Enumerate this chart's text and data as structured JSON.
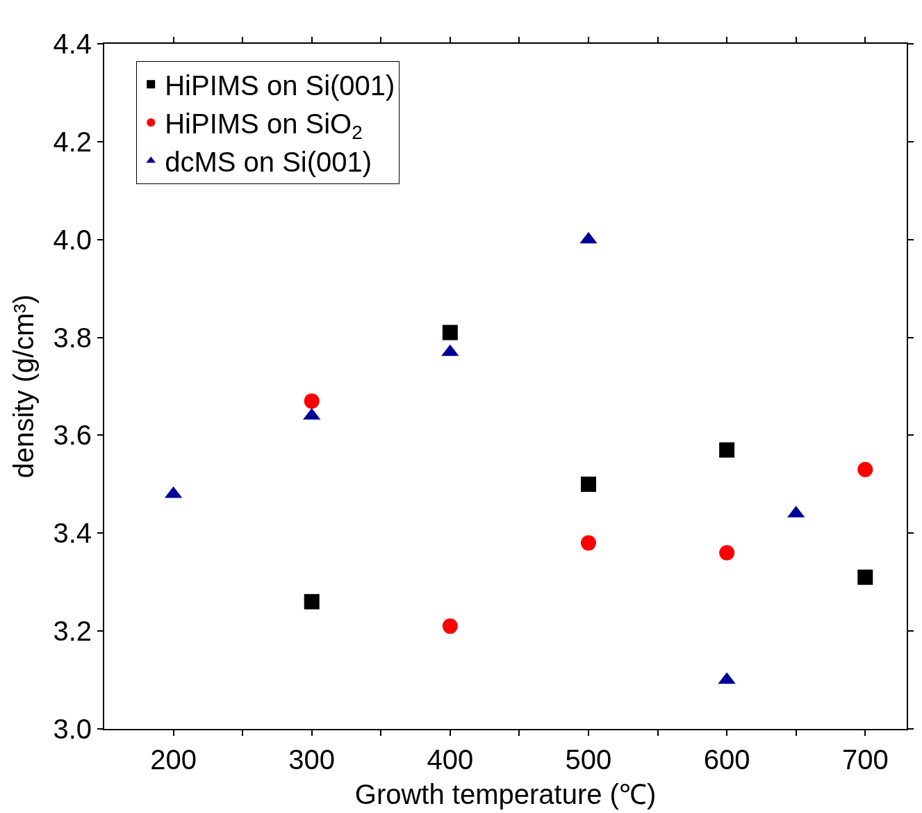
{
  "chart_data": {
    "type": "scatter",
    "xlabel": "Growth temperature (℃)",
    "ylabel": "density (g/cm³)",
    "xlim": [
      150,
      730
    ],
    "ylim": [
      3.0,
      4.4
    ],
    "xticks": [
      200,
      {
        "value": 250,
        "label": null
      },
      300,
      {
        "value": 350,
        "label": null
      },
      400,
      {
        "value": 450,
        "label": null
      },
      500,
      {
        "value": 550,
        "label": null
      },
      600,
      {
        "value": 650,
        "label": null
      },
      700
    ],
    "yticks": [
      {
        "value": 3.0,
        "label": "3.0"
      },
      3.2,
      3.4,
      3.6,
      3.8,
      {
        "value": 4.0,
        "label": "4.0"
      },
      4.2,
      4.4
    ],
    "legend": "top left",
    "series": [
      {
        "name": "HiPIMS on Si(001)",
        "color": "#000000",
        "marker": "square",
        "x": [
          300,
          400,
          500,
          600,
          700
        ],
        "values": [
          3.26,
          3.81,
          3.5,
          3.57,
          3.31
        ]
      },
      {
        "name": "HiPIMS on SiO$_{2}$",
        "color": "#ff0000",
        "marker": "circle",
        "x": [
          300,
          400,
          500,
          600,
          700
        ],
        "values": [
          3.67,
          3.21,
          3.38,
          3.36,
          3.53
        ]
      },
      {
        "name": "dcMS on Si(001)",
        "color": "#000099",
        "marker": "triangle",
        "x": [
          200,
          300,
          400,
          500,
          600,
          650
        ],
        "values": [
          3.48,
          3.64,
          3.77,
          4.0,
          3.1,
          3.44
        ]
      }
    ]
  }
}
